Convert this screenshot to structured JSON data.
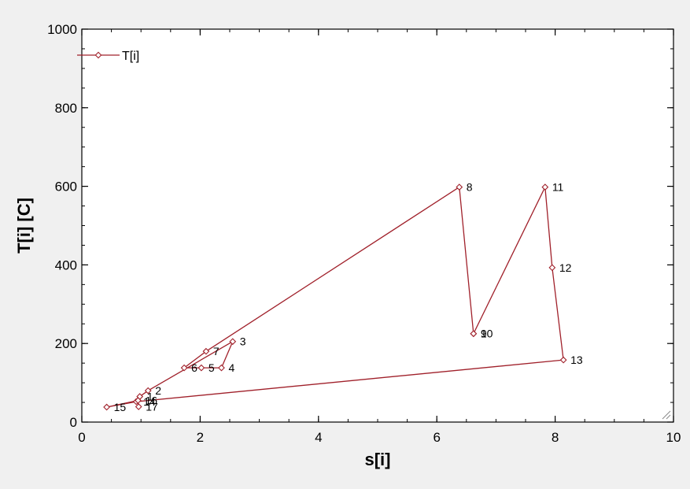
{
  "chart_data": {
    "type": "line",
    "xlabel": "s[i]",
    "ylabel": "T[i]  [C]",
    "xlim": [
      0,
      10
    ],
    "ylim": [
      0,
      1000
    ],
    "xticks": [
      0,
      2,
      4,
      6,
      8,
      10
    ],
    "yticks": [
      0,
      200,
      400,
      600,
      800,
      1000
    ],
    "grid": false,
    "legend": "top-left",
    "series": [
      {
        "name": "T[i]",
        "color": "#a0202a",
        "points": [
          {
            "label": "1",
            "x": 0.98,
            "y": 65
          },
          {
            "label": "2",
            "x": 1.12,
            "y": 80
          },
          {
            "label": "3",
            "x": 2.55,
            "y": 205
          },
          {
            "label": "4",
            "x": 2.36,
            "y": 138
          },
          {
            "label": "5",
            "x": 2.02,
            "y": 138
          },
          {
            "label": "6",
            "x": 1.73,
            "y": 138
          },
          {
            "label": "7",
            "x": 2.1,
            "y": 180
          },
          {
            "label": "8",
            "x": 6.38,
            "y": 598
          },
          {
            "label": "9",
            "x": 6.62,
            "y": 225
          },
          {
            "label": "10",
            "x": 6.62,
            "y": 225
          },
          {
            "label": "11",
            "x": 7.83,
            "y": 598
          },
          {
            "label": "12",
            "x": 7.95,
            "y": 393
          },
          {
            "label": "13",
            "x": 8.14,
            "y": 158
          },
          {
            "label": "14",
            "x": 0.92,
            "y": 52
          },
          {
            "label": "15",
            "x": 0.42,
            "y": 38
          },
          {
            "label": "16",
            "x": 0.95,
            "y": 55
          },
          {
            "label": "17",
            "x": 0.96,
            "y": 39
          }
        ]
      }
    ]
  }
}
